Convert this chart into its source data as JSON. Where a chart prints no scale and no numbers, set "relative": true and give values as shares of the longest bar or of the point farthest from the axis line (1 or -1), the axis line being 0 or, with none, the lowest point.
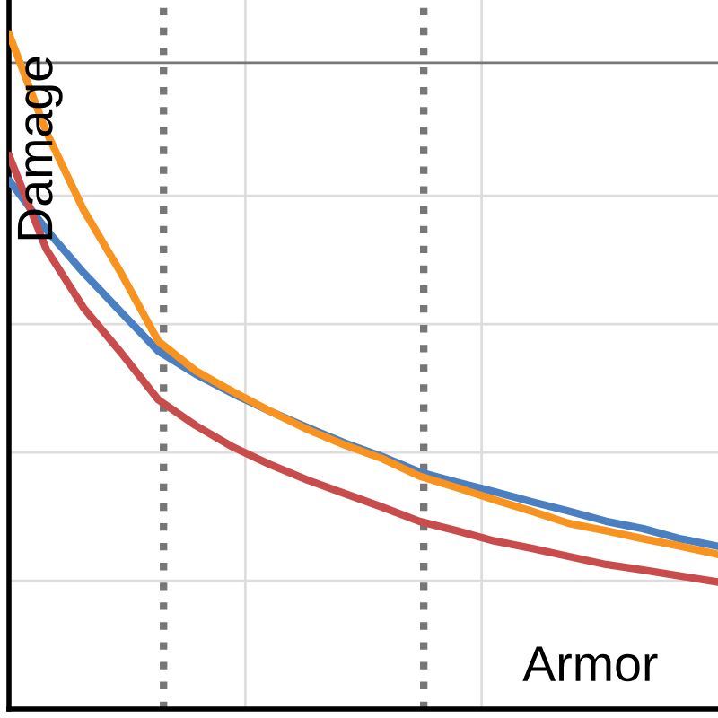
{
  "chart_data": {
    "type": "line",
    "xlabel": "Armor",
    "ylabel": "Damage",
    "relative": true,
    "grid": true,
    "categories": [
      null,
      null,
      null,
      null,
      null,
      null,
      null,
      null,
      null,
      null,
      null,
      null,
      null,
      null,
      null,
      null,
      null,
      null,
      null,
      null
    ],
    "series": [
      {
        "color": "#4a7fc1",
        "values": [
          0.783,
          0.71,
          0.646,
          0.588,
          0.53,
          0.496,
          0.467,
          0.441,
          0.417,
          0.394,
          0.374,
          0.351,
          0.336,
          0.322,
          0.307,
          0.293,
          0.278,
          0.267,
          0.252,
          0.241
        ]
      },
      {
        "color": "#f7931e",
        "values": [
          1.0,
          0.855,
          0.739,
          0.646,
          0.545,
          0.501,
          0.47,
          0.441,
          0.414,
          0.391,
          0.371,
          0.345,
          0.328,
          0.31,
          0.293,
          0.275,
          0.264,
          0.252,
          0.241,
          0.229
        ]
      },
      {
        "color": "#c94c4c",
        "values": [
          0.82,
          0.681,
          0.594,
          0.528,
          0.458,
          0.42,
          0.388,
          0.362,
          0.339,
          0.319,
          0.299,
          0.278,
          0.264,
          0.249,
          0.238,
          0.226,
          0.214,
          0.206,
          0.197,
          0.188
        ]
      }
    ],
    "ref_lines": [
      {
        "axis": "y",
        "value": 0.957,
        "line_style": "solid",
        "color": "#777777"
      }
    ]
  }
}
